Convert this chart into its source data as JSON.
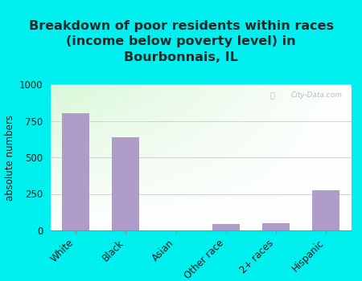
{
  "title": "Breakdown of poor residents within races\n(income below poverty level) in\nBourbonnais, IL",
  "categories": [
    "White",
    "Black",
    "Asian",
    "Other race",
    "2+ races",
    "Hispanic"
  ],
  "values": [
    800,
    640,
    0,
    42,
    52,
    275
  ],
  "bar_color": "#b09cc8",
  "ylabel": "absolute numbers",
  "ylim": [
    0,
    1000
  ],
  "yticks": [
    0,
    250,
    500,
    750,
    1000
  ],
  "bg_outer": "#00f0f0",
  "watermark": "City-Data.com",
  "title_fontsize": 11.5,
  "axis_label_fontsize": 8.5,
  "tick_fontsize": 8.5
}
